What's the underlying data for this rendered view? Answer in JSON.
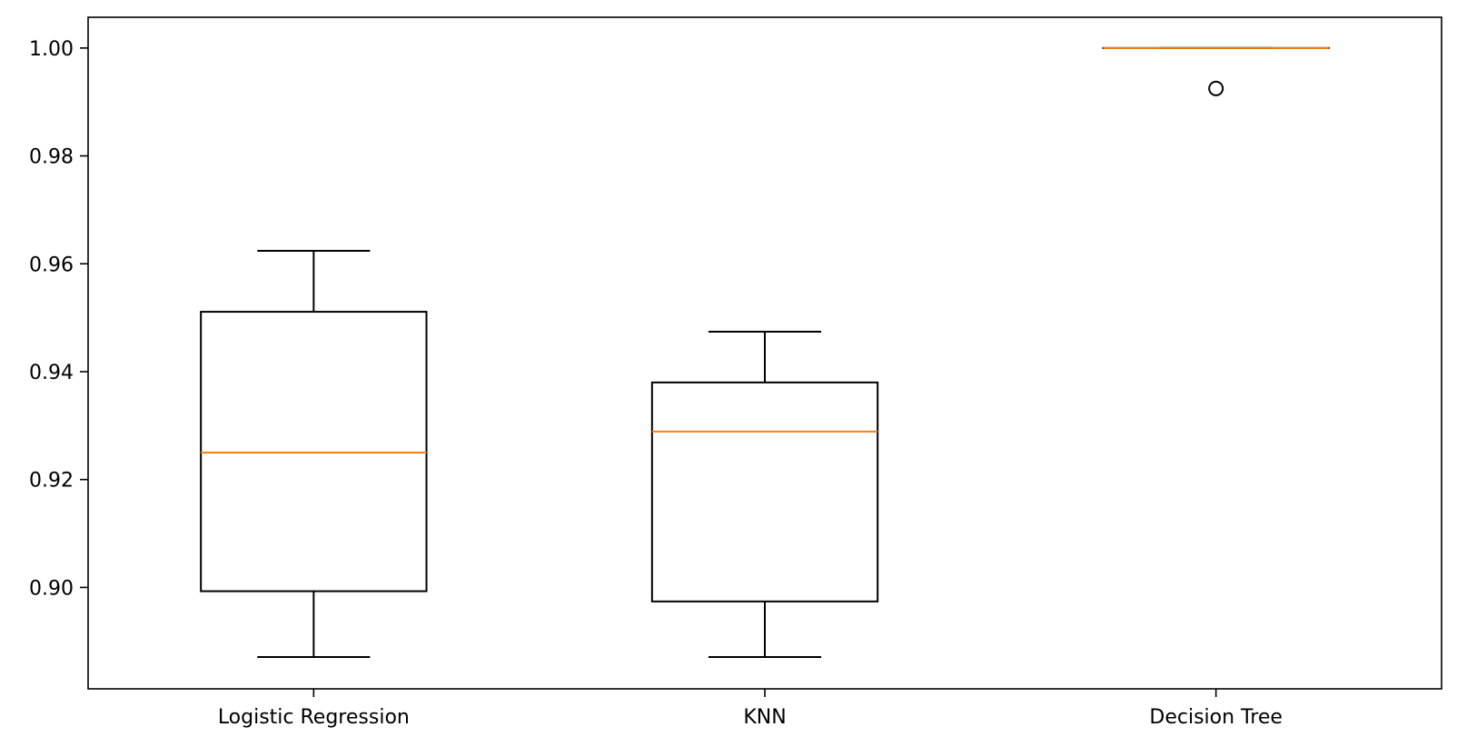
{
  "chart_data": {
    "type": "box",
    "categories": [
      "Logistic Regression",
      "KNN",
      "Decision Tree"
    ],
    "boxes": [
      {
        "category": "Logistic Regression",
        "whisker_low": 0.8871,
        "q1": 0.8993,
        "median": 0.925,
        "q3": 0.9511,
        "whisker_high": 0.9624,
        "outliers": []
      },
      {
        "category": "KNN",
        "whisker_low": 0.8871,
        "q1": 0.8974,
        "median": 0.9289,
        "q3": 0.938,
        "whisker_high": 0.9474,
        "outliers": []
      },
      {
        "category": "Decision Tree",
        "whisker_low": 1.0,
        "q1": 1.0,
        "median": 1.0,
        "q3": 1.0,
        "whisker_high": 1.0,
        "outliers": [
          0.9925
        ]
      }
    ],
    "ylim": [
      0.8812,
      1.0057
    ],
    "yticks": [
      0.9,
      0.92,
      0.94,
      0.96,
      0.98,
      1.0
    ],
    "ytick_labels": [
      "0.90",
      "0.92",
      "0.94",
      "0.96",
      "0.98",
      "1.00"
    ],
    "title": "",
    "xlabel": "",
    "ylabel": "",
    "grid": false,
    "colors": {
      "box": "#000000",
      "median": "#ff7f0e",
      "outlier": "#000000"
    }
  }
}
